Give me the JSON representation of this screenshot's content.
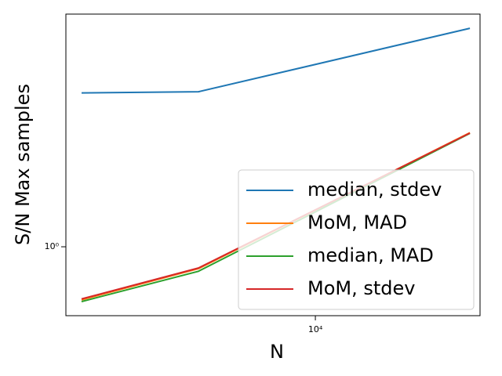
{
  "chart_data": {
    "type": "line",
    "xlabel": "N",
    "ylabel": "S/N Max samples",
    "xlog": true,
    "ylog": true,
    "x": [
      2500,
      5000,
      25000
    ],
    "series": [
      {
        "name": "median, stdev",
        "color": "#1f77b4",
        "values": [
          4.4,
          4.45,
          8.2
        ]
      },
      {
        "name": "MoM, MAD",
        "color": "#ff7f0e",
        "values": [
          0.6,
          0.81,
          3.0
        ]
      },
      {
        "name": "median, MAD",
        "color": "#2ca02c",
        "values": [
          0.59,
          0.79,
          2.98
        ]
      },
      {
        "name": "MoM, stdev",
        "color": "#d62728",
        "values": [
          0.605,
          0.815,
          2.99
        ]
      }
    ],
    "xlim": [
      2278,
      26550
    ],
    "ylim": [
      0.515,
      9.4
    ],
    "xticks": [
      {
        "value": 10000,
        "label": "10⁴"
      }
    ],
    "yticks": [
      {
        "value": 1,
        "label": "10⁰"
      }
    ],
    "legend": "lower right"
  }
}
